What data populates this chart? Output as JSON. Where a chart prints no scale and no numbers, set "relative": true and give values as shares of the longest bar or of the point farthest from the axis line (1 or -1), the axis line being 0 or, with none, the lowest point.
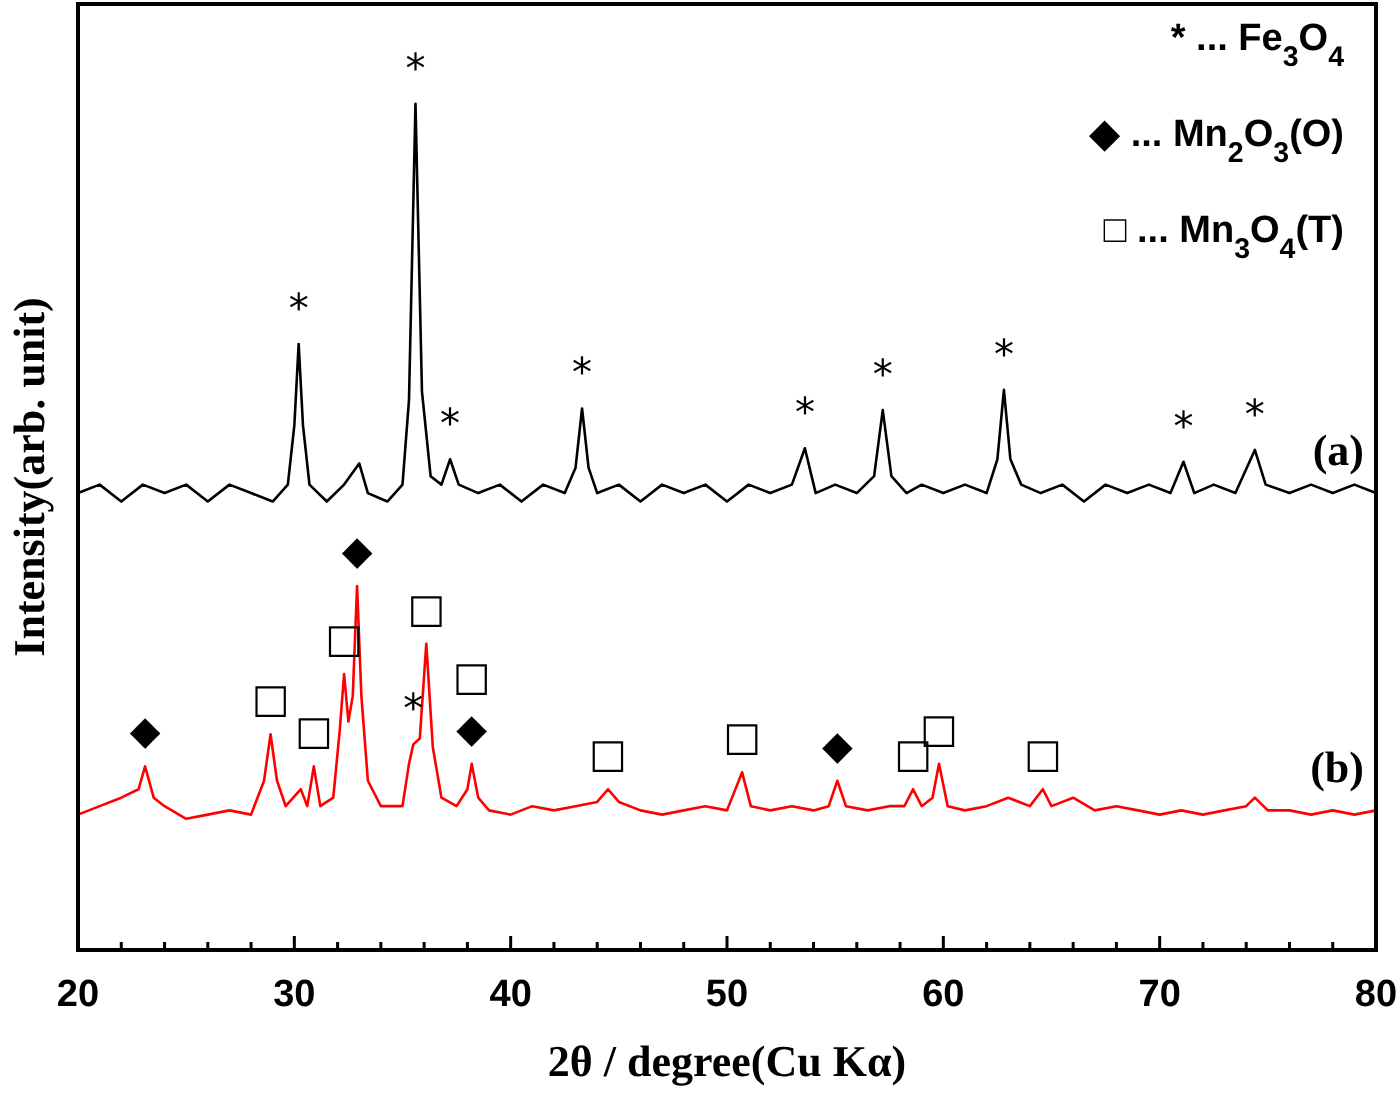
{
  "chart_data": {
    "type": "line",
    "relative": true,
    "xlabel": "2θ / degree(Cu Kα)",
    "ylabel": "Intensity(arb. unit)",
    "xlim": [
      20,
      80
    ],
    "xticks": [
      20,
      {
        "value": 22,
        "label": null
      },
      {
        "value": 24,
        "label": null
      },
      {
        "value": 26,
        "label": null
      },
      {
        "value": 28,
        "label": null
      },
      30,
      {
        "value": 32,
        "label": null
      },
      {
        "value": 34,
        "label": null
      },
      {
        "value": 36,
        "label": null
      },
      {
        "value": 38,
        "label": null
      },
      40,
      {
        "value": 42,
        "label": null
      },
      {
        "value": 44,
        "label": null
      },
      {
        "value": 46,
        "label": null
      },
      {
        "value": 48,
        "label": null
      },
      50,
      {
        "value": 52,
        "label": null
      },
      {
        "value": 54,
        "label": null
      },
      {
        "value": 56,
        "label": null
      },
      {
        "value": 58,
        "label": null
      },
      60,
      {
        "value": 62,
        "label": null
      },
      {
        "value": 64,
        "label": null
      },
      {
        "value": 66,
        "label": null
      },
      {
        "value": 68,
        "label": null
      },
      70,
      {
        "value": 72,
        "label": null
      },
      {
        "value": 74,
        "label": null
      },
      {
        "value": 76,
        "label": null
      },
      {
        "value": 78,
        "label": null
      },
      80
    ],
    "grid": false,
    "marker": "none",
    "line_style": "solid",
    "series": [
      {
        "name": "(a)",
        "color": "#000000",
        "x": [
          20,
          21,
          22,
          23,
          24,
          25,
          26,
          27,
          28,
          29,
          29.7,
          30.0,
          30.2,
          30.4,
          30.7,
          31.5,
          32.3,
          33.0,
          33.4,
          34.3,
          35.0,
          35.3,
          35.6,
          35.9,
          36.3,
          36.8,
          37.2,
          37.6,
          38.5,
          39.5,
          40.5,
          41.5,
          42.5,
          43.0,
          43.3,
          43.6,
          44.0,
          45,
          46,
          47,
          48,
          49,
          50,
          51,
          52,
          53,
          53.6,
          54.1,
          55,
          56,
          56.8,
          57.2,
          57.6,
          58.3,
          59,
          60,
          61,
          62,
          62.5,
          62.8,
          63.1,
          63.6,
          64.5,
          65.5,
          66.5,
          67.5,
          68.5,
          69.5,
          70.5,
          71.1,
          71.6,
          72.5,
          73.5,
          74.4,
          74.9,
          76,
          77,
          78,
          79,
          80
        ],
        "values": [
          0.54,
          0.55,
          0.53,
          0.55,
          0.54,
          0.55,
          0.53,
          0.55,
          0.54,
          0.53,
          0.55,
          0.62,
          0.716,
          0.62,
          0.55,
          0.53,
          0.55,
          0.575,
          0.54,
          0.53,
          0.55,
          0.65,
          1,
          0.66,
          0.56,
          0.55,
          0.58,
          0.55,
          0.54,
          0.55,
          0.53,
          0.55,
          0.54,
          0.57,
          0.64,
          0.57,
          0.54,
          0.55,
          0.53,
          0.55,
          0.54,
          0.55,
          0.53,
          0.55,
          0.54,
          0.55,
          0.593,
          0.54,
          0.55,
          0.54,
          0.56,
          0.638,
          0.56,
          0.54,
          0.55,
          0.54,
          0.55,
          0.54,
          0.58,
          0.662,
          0.58,
          0.55,
          0.54,
          0.55,
          0.53,
          0.55,
          0.54,
          0.55,
          0.54,
          0.577,
          0.54,
          0.55,
          0.54,
          0.591,
          0.55,
          0.54,
          0.55,
          0.54,
          0.55,
          0.54
        ]
      },
      {
        "name": "(b)",
        "color": "#ff0000",
        "x": [
          20,
          21,
          22,
          22.8,
          23.1,
          23.5,
          24,
          25,
          26,
          27,
          28,
          28.6,
          28.9,
          29.2,
          29.6,
          30.3,
          30.6,
          30.9,
          31.2,
          31.8,
          32.1,
          32.3,
          32.5,
          32.7,
          32.9,
          33.1,
          33.4,
          34,
          35,
          35.3,
          35.5,
          35.8,
          36.1,
          36.4,
          36.8,
          37.5,
          38.0,
          38.2,
          38.5,
          39,
          40,
          41,
          42,
          43,
          44,
          44.5,
          45,
          46,
          47,
          48,
          49,
          50,
          50.7,
          51.1,
          52,
          53,
          54,
          54.7,
          55.1,
          55.5,
          56.5,
          57.5,
          58.2,
          58.6,
          59,
          59.5,
          59.8,
          60.2,
          61,
          62,
          63,
          64,
          64.6,
          65,
          66,
          67,
          68,
          69,
          70,
          71,
          72,
          73,
          74,
          74.4,
          75,
          76,
          77,
          78,
          79,
          80
        ],
        "values": [
          0.16,
          0.17,
          0.18,
          0.19,
          0.217,
          0.18,
          0.17,
          0.155,
          0.16,
          0.165,
          0.16,
          0.2,
          0.255,
          0.2,
          0.17,
          0.19,
          0.17,
          0.217,
          0.17,
          0.18,
          0.26,
          0.326,
          0.27,
          0.3,
          0.43,
          0.3,
          0.2,
          0.17,
          0.17,
          0.22,
          0.243,
          0.25,
          0.362,
          0.24,
          0.18,
          0.17,
          0.19,
          0.22,
          0.18,
          0.165,
          0.16,
          0.17,
          0.165,
          0.17,
          0.175,
          0.19,
          0.175,
          0.165,
          0.16,
          0.165,
          0.17,
          0.165,
          0.21,
          0.17,
          0.165,
          0.17,
          0.165,
          0.17,
          0.2,
          0.17,
          0.165,
          0.17,
          0.17,
          0.19,
          0.17,
          0.18,
          0.22,
          0.17,
          0.165,
          0.17,
          0.18,
          0.17,
          0.19,
          0.17,
          0.18,
          0.165,
          0.17,
          0.165,
          0.16,
          0.165,
          0.16,
          0.165,
          0.17,
          0.18,
          0.165,
          0.165,
          0.16,
          0.165,
          0.16,
          0.165
        ]
      }
    ],
    "annotations": [
      "* ... Fe$_{3}$O$_{4}$",
      "◆ ... Mn$_{2}$O$_{3}$(O)",
      "□ ... Mn$_{3}$O$_{4}$(T)",
      {
        "text": "*",
        "x": 30.2,
        "y": 0.716
      },
      {
        "text": "*",
        "x": 35.6,
        "y": 1
      },
      {
        "text": "*",
        "x": 37.2,
        "y": 0.58
      },
      {
        "text": "*",
        "x": 43.3,
        "y": 0.64
      },
      {
        "text": "*",
        "x": 53.6,
        "y": 0.593
      },
      {
        "text": "*",
        "x": 57.2,
        "y": 0.638
      },
      {
        "text": "*",
        "x": 62.8,
        "y": 0.662
      },
      {
        "text": "*",
        "x": 71.1,
        "y": 0.577
      },
      {
        "text": "*",
        "x": 74.4,
        "y": 0.591
      },
      {
        "text": "◆",
        "x": 23.1,
        "y": 0.217
      },
      {
        "text": "□",
        "x": 28.9,
        "y": 0.255
      },
      {
        "text": "□",
        "x": 30.9,
        "y": 0.217
      },
      {
        "text": "□",
        "x": 32.3,
        "y": 0.326
      },
      {
        "text": "◆",
        "x": 32.9,
        "y": 0.43
      },
      {
        "text": "*",
        "x": 35.5,
        "y": 0.243
      },
      {
        "text": "□",
        "x": 36.1,
        "y": 0.362
      },
      {
        "text": "◆",
        "x": 38.2,
        "y": 0.22
      },
      {
        "text": "□",
        "x": 38.2,
        "y": 0.22
      },
      {
        "text": "□",
        "x": 44.5,
        "y": 0.19
      },
      {
        "text": "□",
        "x": 50.7,
        "y": 0.21
      },
      {
        "text": "◆",
        "x": 55.1,
        "y": 0.2
      },
      {
        "text": "□",
        "x": 58.6,
        "y": 0.19
      },
      {
        "text": "□",
        "x": 59.8,
        "y": 0.22
      },
      {
        "text": "□",
        "x": 64.6,
        "y": 0.19
      }
    ]
  }
}
